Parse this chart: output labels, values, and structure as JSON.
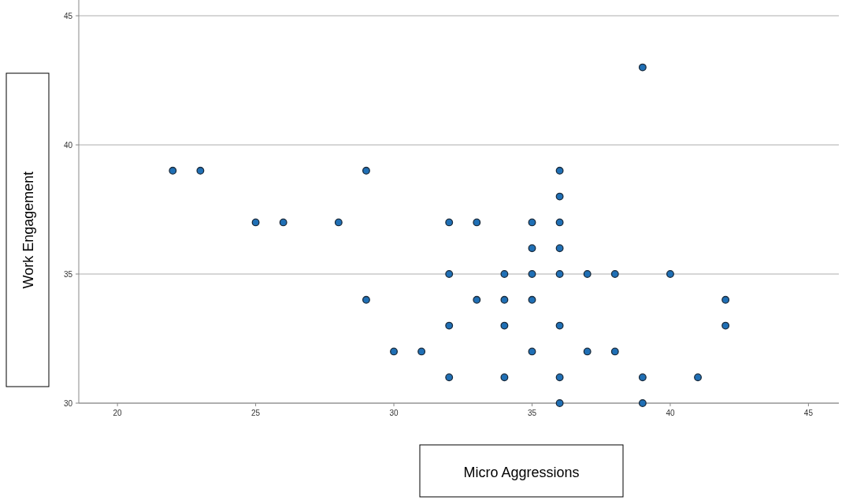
{
  "chart_data": {
    "type": "scatter",
    "xlabel": "Micro Aggressions",
    "ylabel": "Work Engagement",
    "x": [
      22,
      23,
      29,
      36,
      39,
      36,
      25,
      26,
      28,
      32,
      33,
      35,
      36,
      35,
      36,
      32,
      34,
      35,
      36,
      37,
      38,
      40,
      29,
      33,
      34,
      35,
      42,
      32,
      34,
      36,
      42,
      30,
      31,
      35,
      37,
      38,
      32,
      34,
      36,
      39,
      41,
      36,
      39
    ],
    "values": [
      39,
      39,
      39,
      39,
      43,
      38,
      37,
      37,
      37,
      37,
      37,
      37,
      37,
      36,
      36,
      35,
      35,
      35,
      35,
      35,
      35,
      35,
      34,
      34,
      34,
      34,
      34,
      33,
      33,
      33,
      33,
      32,
      32,
      32,
      32,
      32,
      31,
      31,
      31,
      31,
      31,
      30,
      30
    ],
    "color": "#1f6fb5",
    "marker": "circle",
    "xlim": [
      18.6,
      46.1
    ],
    "ylim": [
      30,
      45
    ],
    "xticks": [
      20,
      25,
      30,
      35,
      40,
      45
    ],
    "yticks": [
      30,
      35,
      40,
      45
    ],
    "grid": "y"
  }
}
